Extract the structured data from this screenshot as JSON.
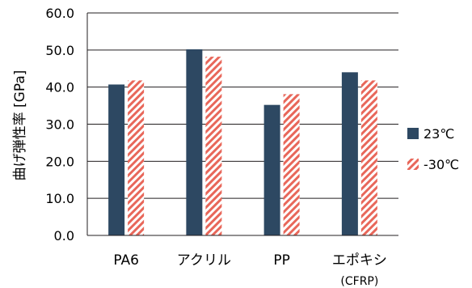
{
  "chart_data": {
    "type": "bar",
    "categories": [
      "PA6",
      "アクリル",
      "PP",
      "エポキシ"
    ],
    "category_sublabels": [
      "",
      "",
      "",
      "(CFRP)"
    ],
    "series": [
      {
        "name": "23℃",
        "values": [
          40.7,
          50.2,
          35.2,
          44.0
        ],
        "color": "#2d4862",
        "fill": "solid"
      },
      {
        "name": "-30℃",
        "values": [
          41.8,
          48.2,
          38.1,
          41.8
        ],
        "color": "#e8675a",
        "fill": "diagonal-hatch"
      }
    ],
    "ylabel": "曲げ弾性率 [GPa]",
    "ylim": [
      0,
      60
    ],
    "yticks": [
      "0.0",
      "10.0",
      "20.0",
      "30.0",
      "40.0",
      "50.0",
      "60.0"
    ],
    "grid": true,
    "legend": "right"
  }
}
